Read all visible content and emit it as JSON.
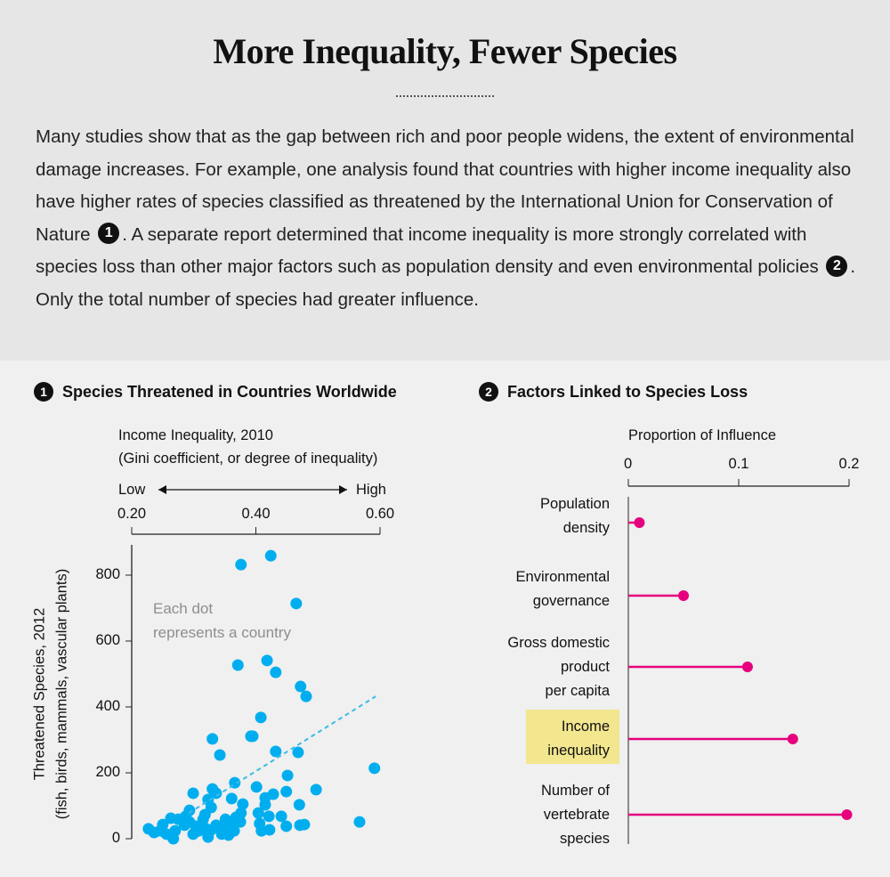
{
  "header": {
    "title": "More Inequality, Fewer Species",
    "intro": [
      "Many studies show that as the gap between rich and poor people widens, the extent of environmental damage increases. For example, one analysis found that countries with higher income inequality also have higher rates of species classified as threatened by the International Union for Conservation of Nature",
      "1",
      ". A separate report determined that income inequality is more strongly correlated with species loss than other major factors such as population density and even environmental policies",
      "2",
      ". Only the total number of species had greater influence."
    ]
  },
  "colors": {
    "dots": "#00aeef",
    "trend": "#3dbbe8",
    "lollipop": "#e6007e",
    "highlight": "#f2e68f"
  },
  "chart_data": [
    {
      "type": "scatter",
      "number": "1",
      "title": "Species Threatened in Countries Worldwide",
      "xlabel": "Income Inequality, 2010",
      "xlabel_sub": "(Gini coefficient, or degree of inequality)",
      "x_direction": {
        "low": "Low",
        "high": "High"
      },
      "ylabel": "Threatened Species, 2012",
      "ylabel_sub": "(fish, birds, mammals, vascular plants)",
      "xlim": [
        0.2,
        0.6
      ],
      "ylim": [
        0,
        880
      ],
      "x_ticks": [
        "0.20",
        "0.40",
        "0.60"
      ],
      "x_tick_values": [
        0.2,
        0.4,
        0.6
      ],
      "y_ticks": [
        "0",
        "200",
        "400",
        "600",
        "800"
      ],
      "y_tick_values": [
        0,
        200,
        400,
        600,
        800
      ],
      "x_axis_position": "top",
      "annotation": [
        "Each dot",
        "represents a country"
      ],
      "trend_line": {
        "style": "dashed",
        "from": [
          0.292,
          78
        ],
        "to": [
          0.593,
          432
        ]
      },
      "points": [
        [
          0.376,
          832
        ],
        [
          0.424,
          859
        ],
        [
          0.465,
          714
        ],
        [
          0.371,
          527
        ],
        [
          0.418,
          541
        ],
        [
          0.432,
          505
        ],
        [
          0.472,
          462
        ],
        [
          0.481,
          432
        ],
        [
          0.408,
          368
        ],
        [
          0.33,
          303
        ],
        [
          0.392,
          311
        ],
        [
          0.395,
          311
        ],
        [
          0.342,
          254
        ],
        [
          0.432,
          265
        ],
        [
          0.468,
          262
        ],
        [
          0.591,
          214
        ],
        [
          0.451,
          192
        ],
        [
          0.366,
          170
        ],
        [
          0.401,
          157
        ],
        [
          0.299,
          138
        ],
        [
          0.33,
          151
        ],
        [
          0.336,
          138
        ],
        [
          0.449,
          143
        ],
        [
          0.428,
          135
        ],
        [
          0.497,
          149
        ],
        [
          0.323,
          119
        ],
        [
          0.361,
          122
        ],
        [
          0.415,
          124
        ],
        [
          0.379,
          105
        ],
        [
          0.47,
          103
        ],
        [
          0.328,
          95
        ],
        [
          0.415,
          103
        ],
        [
          0.293,
          86
        ],
        [
          0.404,
          78
        ],
        [
          0.421,
          68
        ],
        [
          0.441,
          68
        ],
        [
          0.567,
          51
        ],
        [
          0.263,
          62
        ],
        [
          0.376,
          78
        ],
        [
          0.368,
          65
        ],
        [
          0.287,
          68
        ],
        [
          0.315,
          59
        ],
        [
          0.351,
          59
        ],
        [
          0.25,
          43
        ],
        [
          0.227,
          30
        ],
        [
          0.236,
          19
        ],
        [
          0.267,
          0
        ],
        [
          0.299,
          14
        ],
        [
          0.323,
          5
        ],
        [
          0.356,
          11
        ],
        [
          0.345,
          14
        ],
        [
          0.406,
          46
        ],
        [
          0.409,
          24
        ],
        [
          0.422,
          27
        ],
        [
          0.449,
          38
        ],
        [
          0.471,
          41
        ],
        [
          0.478,
          43
        ],
        [
          0.27,
          24
        ],
        [
          0.285,
          41
        ],
        [
          0.303,
          38
        ],
        [
          0.318,
          32
        ],
        [
          0.336,
          41
        ],
        [
          0.361,
          38
        ],
        [
          0.375,
          51
        ],
        [
          0.256,
          14
        ],
        [
          0.246,
          24
        ],
        [
          0.308,
          24
        ],
        [
          0.328,
          27
        ],
        [
          0.346,
          32
        ],
        [
          0.365,
          24
        ],
        [
          0.275,
          59
        ],
        [
          0.293,
          51
        ],
        [
          0.318,
          73
        ]
      ]
    },
    {
      "type": "lollipop",
      "number": "2",
      "title": "Factors Linked to Species Loss",
      "xlabel": "Proportion of Influence",
      "xlim": [
        0,
        0.2
      ],
      "x_ticks": [
        "0",
        "0.1",
        "0.2"
      ],
      "x_tick_values": [
        0,
        0.1,
        0.2
      ],
      "x_axis_position": "top",
      "categories": [
        [
          "Population",
          "density"
        ],
        [
          "Environmental",
          "governance"
        ],
        [
          "Gross domestic",
          "product",
          "per capita"
        ],
        [
          "Income",
          "inequality"
        ],
        [
          "Number of",
          "vertebrate",
          "species"
        ]
      ],
      "values": [
        0.01,
        0.05,
        0.108,
        0.149,
        0.198
      ],
      "highlighted": "Income inequality"
    }
  ]
}
